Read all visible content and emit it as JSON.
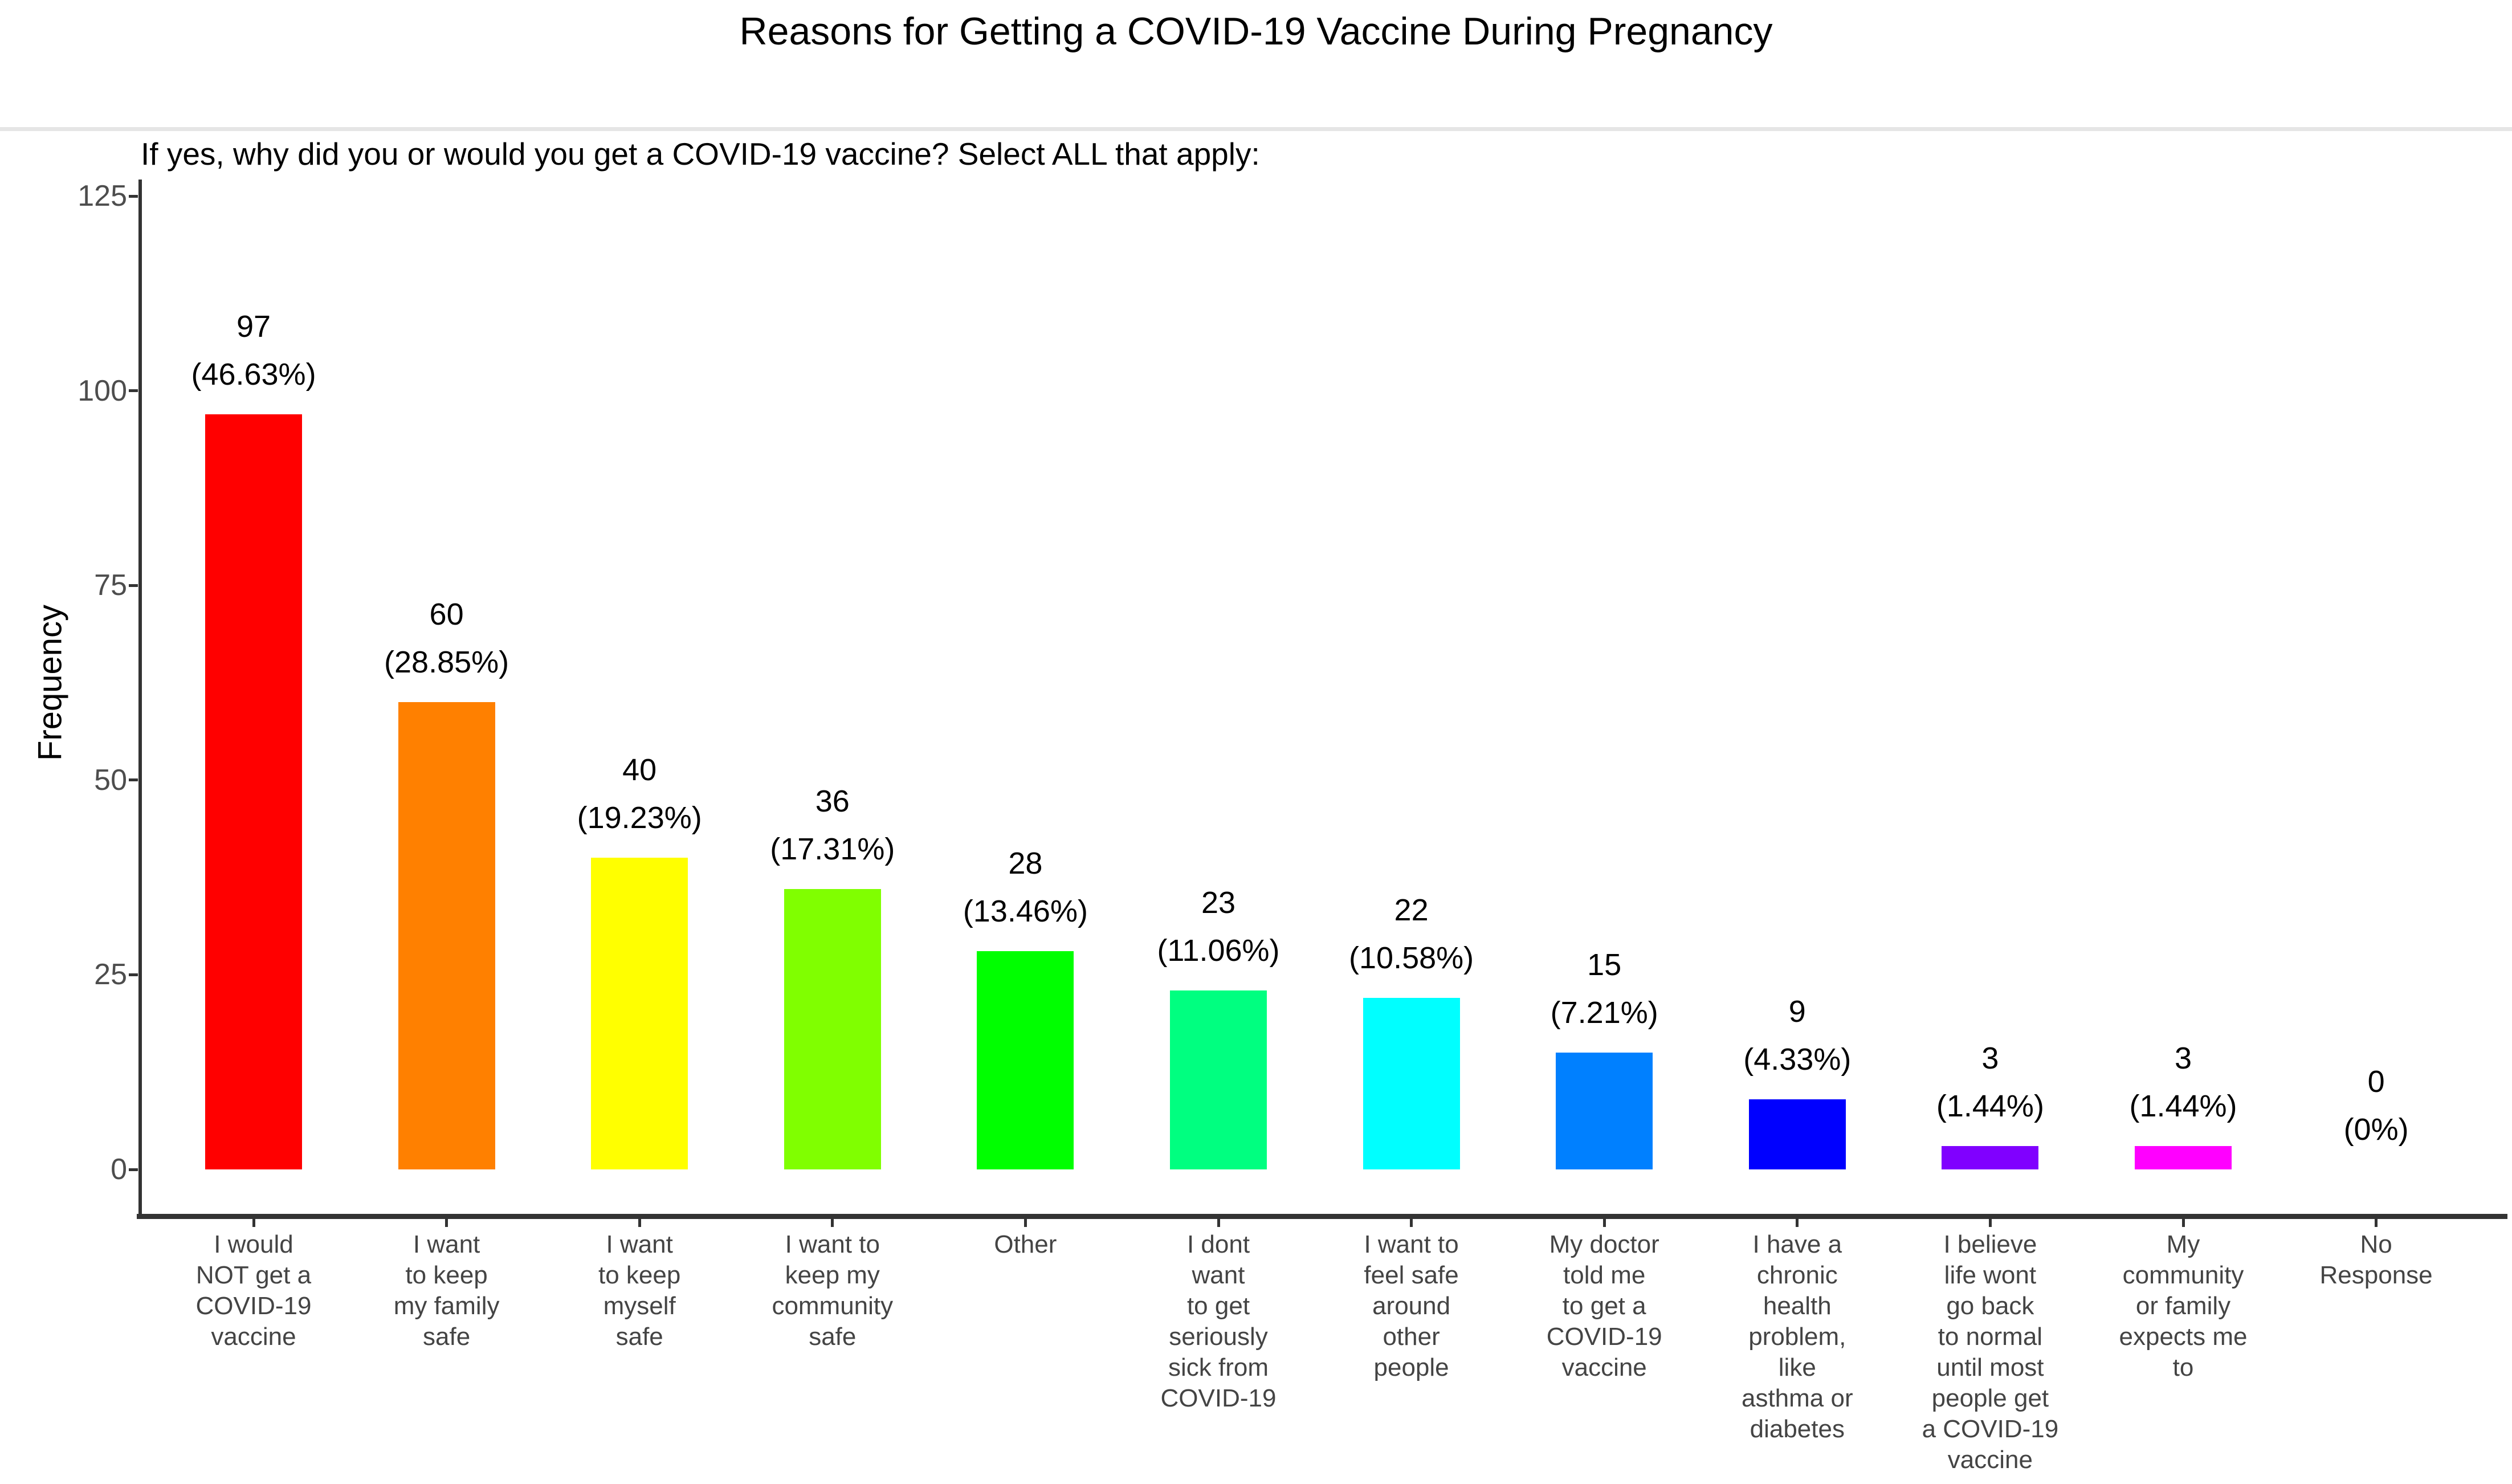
{
  "page_title": "Reasons for Getting a COVID-19 Vaccine During Pregnancy",
  "chart_data": {
    "type": "bar",
    "title": "If yes, why did you or would you get a COVID-19 vaccine? Select ALL that apply:",
    "xlabel": "",
    "ylabel": "Frequency",
    "ylim": [
      0,
      125
    ],
    "yticks": [
      0,
      25,
      50,
      75,
      100,
      125
    ],
    "grid": false,
    "legend": false,
    "categories": [
      "I would\nNOT get a\nCOVID-19\nvaccine",
      "I want\nto keep\nmy family\nsafe",
      "I want\nto keep\nmyself\nsafe",
      "I want to\nkeep my\ncommunity\nsafe",
      "Other",
      "I dont\nwant\nto get\nseriously\nsick from\nCOVID-19",
      "I want to\nfeel safe\naround\nother\npeople",
      "My doctor\ntold me\nto get a\nCOVID-19\nvaccine",
      "I have a\nchronic\nhealth\nproblem,\nlike\nasthma or\ndiabetes",
      "I believe\nlife wont\ngo back\nto normal\nuntil most\npeople get\na COVID-19\nvaccine",
      "My\ncommunity\nor family\nexpects me\nto",
      "No\nResponse"
    ],
    "values": [
      97,
      60,
      40,
      36,
      28,
      23,
      22,
      15,
      9,
      3,
      3,
      0
    ],
    "percent_labels": [
      "(46.63%)",
      "(28.85%)",
      "(19.23%)",
      "(17.31%)",
      "(13.46%)",
      "(11.06%)",
      "(10.58%)",
      "(7.21%)",
      "(4.33%)",
      "(1.44%)",
      "(1.44%)",
      "(0%)"
    ],
    "bar_colors": [
      "#FF0000",
      "#FF8000",
      "#FFFF00",
      "#80FF00",
      "#00FF00",
      "#00FF80",
      "#00FFFF",
      "#0080FF",
      "#0000FF",
      "#8000FF",
      "#FF00FF",
      null
    ]
  }
}
